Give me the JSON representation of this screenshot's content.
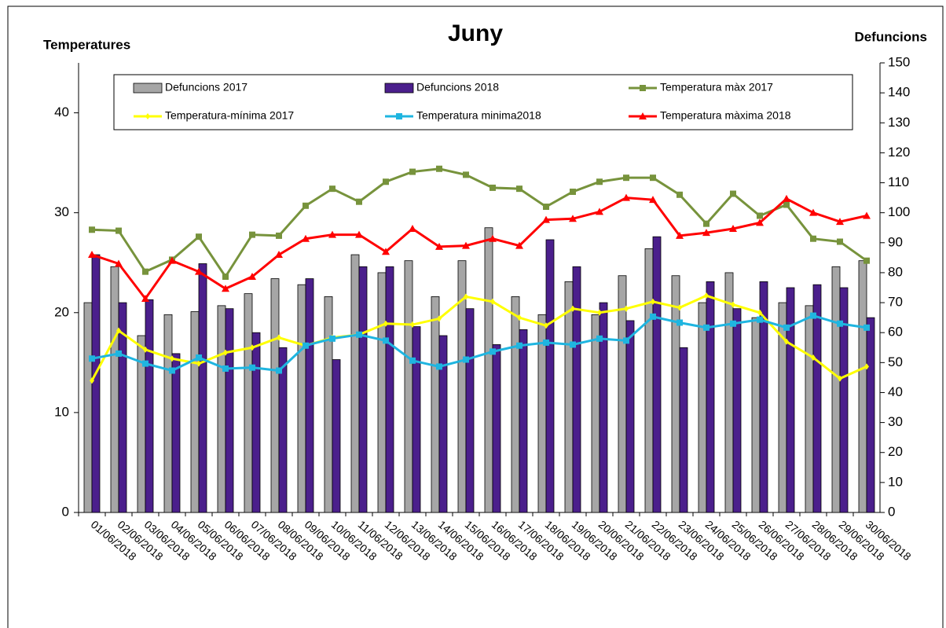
{
  "chart_data": {
    "type": "combo",
    "title": "Juny",
    "y_label": "Temperatures",
    "y2_label": "Defuncions",
    "categories": [
      "01/06/2018",
      "02/06/2018",
      "03/06/2018",
      "04/06/2018",
      "05/06/2018",
      "06/06/2018",
      "07/06/2018",
      "08/06/2018",
      "09/06/2018",
      "10/06/2018",
      "11/06/2018",
      "12/06/2018",
      "13/06/2018",
      "14/06/2018",
      "15/06/2018",
      "16/06/2018",
      "17/06/2018",
      "18/06/2018",
      "19/06/2018",
      "20/06/2018",
      "21/06/2018",
      "22/06/2018",
      "23/06/2018",
      "24/06/2018",
      "25/06/2018",
      "26/06/2018",
      "27/06/2018",
      "28/06/2018",
      "29/06/2018",
      "30/06/2018"
    ],
    "ylim": [
      0,
      45
    ],
    "yticks": [
      0,
      10,
      20,
      30,
      40
    ],
    "y2lim": [
      0,
      150
    ],
    "y2ticks": [
      0,
      10,
      20,
      30,
      40,
      50,
      60,
      70,
      80,
      90,
      100,
      110,
      120,
      130,
      140,
      150
    ],
    "grid": false,
    "series": [
      {
        "name": "Defuncions 2017",
        "type": "bar",
        "axis": "y2",
        "color": "#a6a6a6",
        "values": [
          70,
          82,
          59,
          66,
          67,
          69,
          73,
          78,
          76,
          72,
          86,
          80,
          84,
          72,
          84,
          95,
          72,
          66,
          77,
          66,
          79,
          88,
          79,
          70,
          80,
          65,
          70,
          69,
          82,
          84
        ]
      },
      {
        "name": "Defuncions 2018",
        "type": "bar",
        "axis": "y2",
        "color": "#4b1f8c",
        "values": [
          86,
          70,
          71,
          53,
          83,
          68,
          60,
          55,
          78,
          51,
          82,
          82,
          62,
          59,
          68,
          56,
          61,
          91,
          82,
          70,
          64,
          92,
          55,
          77,
          68,
          77,
          75,
          76,
          75,
          65
        ]
      },
      {
        "name": "Temperatura màx 2017",
        "type": "line",
        "marker": "square",
        "color": "#77933c",
        "values": [
          28.3,
          28.2,
          24.1,
          25.3,
          27.6,
          23.6,
          27.8,
          27.7,
          30.7,
          32.4,
          31.1,
          33.1,
          34.1,
          34.4,
          33.8,
          32.5,
          32.4,
          30.6,
          32.1,
          33.1,
          33.5,
          33.5,
          31.8,
          28.9,
          31.9,
          29.7,
          30.8,
          27.4,
          27.1,
          25.2
        ]
      },
      {
        "name": "Temperatura-mínima 2017",
        "type": "line",
        "marker": "diamond",
        "color": "#ffff00",
        "values": [
          13.2,
          18.2,
          16.3,
          15.4,
          14.9,
          16.0,
          16.5,
          17.5,
          16.7,
          17.5,
          17.8,
          18.9,
          18.8,
          19.4,
          21.6,
          21.1,
          19.5,
          18.7,
          20.4,
          20.0,
          20.4,
          21.1,
          20.5,
          21.7,
          20.8,
          20.0,
          17.1,
          15.5,
          13.4,
          14.6
        ]
      },
      {
        "name": "Temperatura minima2018",
        "type": "line",
        "marker": "square",
        "color": "#1fb5e0",
        "values": [
          15.4,
          15.9,
          14.9,
          14.2,
          15.5,
          14.4,
          14.5,
          14.2,
          16.7,
          17.4,
          17.8,
          17.2,
          15.2,
          14.6,
          15.3,
          16.1,
          16.7,
          17.0,
          16.8,
          17.4,
          17.2,
          19.6,
          19.0,
          18.5,
          18.9,
          19.3,
          18.5,
          19.7,
          18.9,
          18.5
        ]
      },
      {
        "name": "Temperatura màxima 2018",
        "type": "line",
        "marker": "triangle",
        "color": "#ff0000",
        "values": [
          25.8,
          24.9,
          21.4,
          25.2,
          24.1,
          22.4,
          23.6,
          25.8,
          27.4,
          27.8,
          27.8,
          26.1,
          28.4,
          26.6,
          26.7,
          27.4,
          26.7,
          29.3,
          29.4,
          30.1,
          31.5,
          31.3,
          27.7,
          28.0,
          28.4,
          29.0,
          31.4,
          30.0,
          29.1,
          29.7
        ]
      }
    ]
  }
}
